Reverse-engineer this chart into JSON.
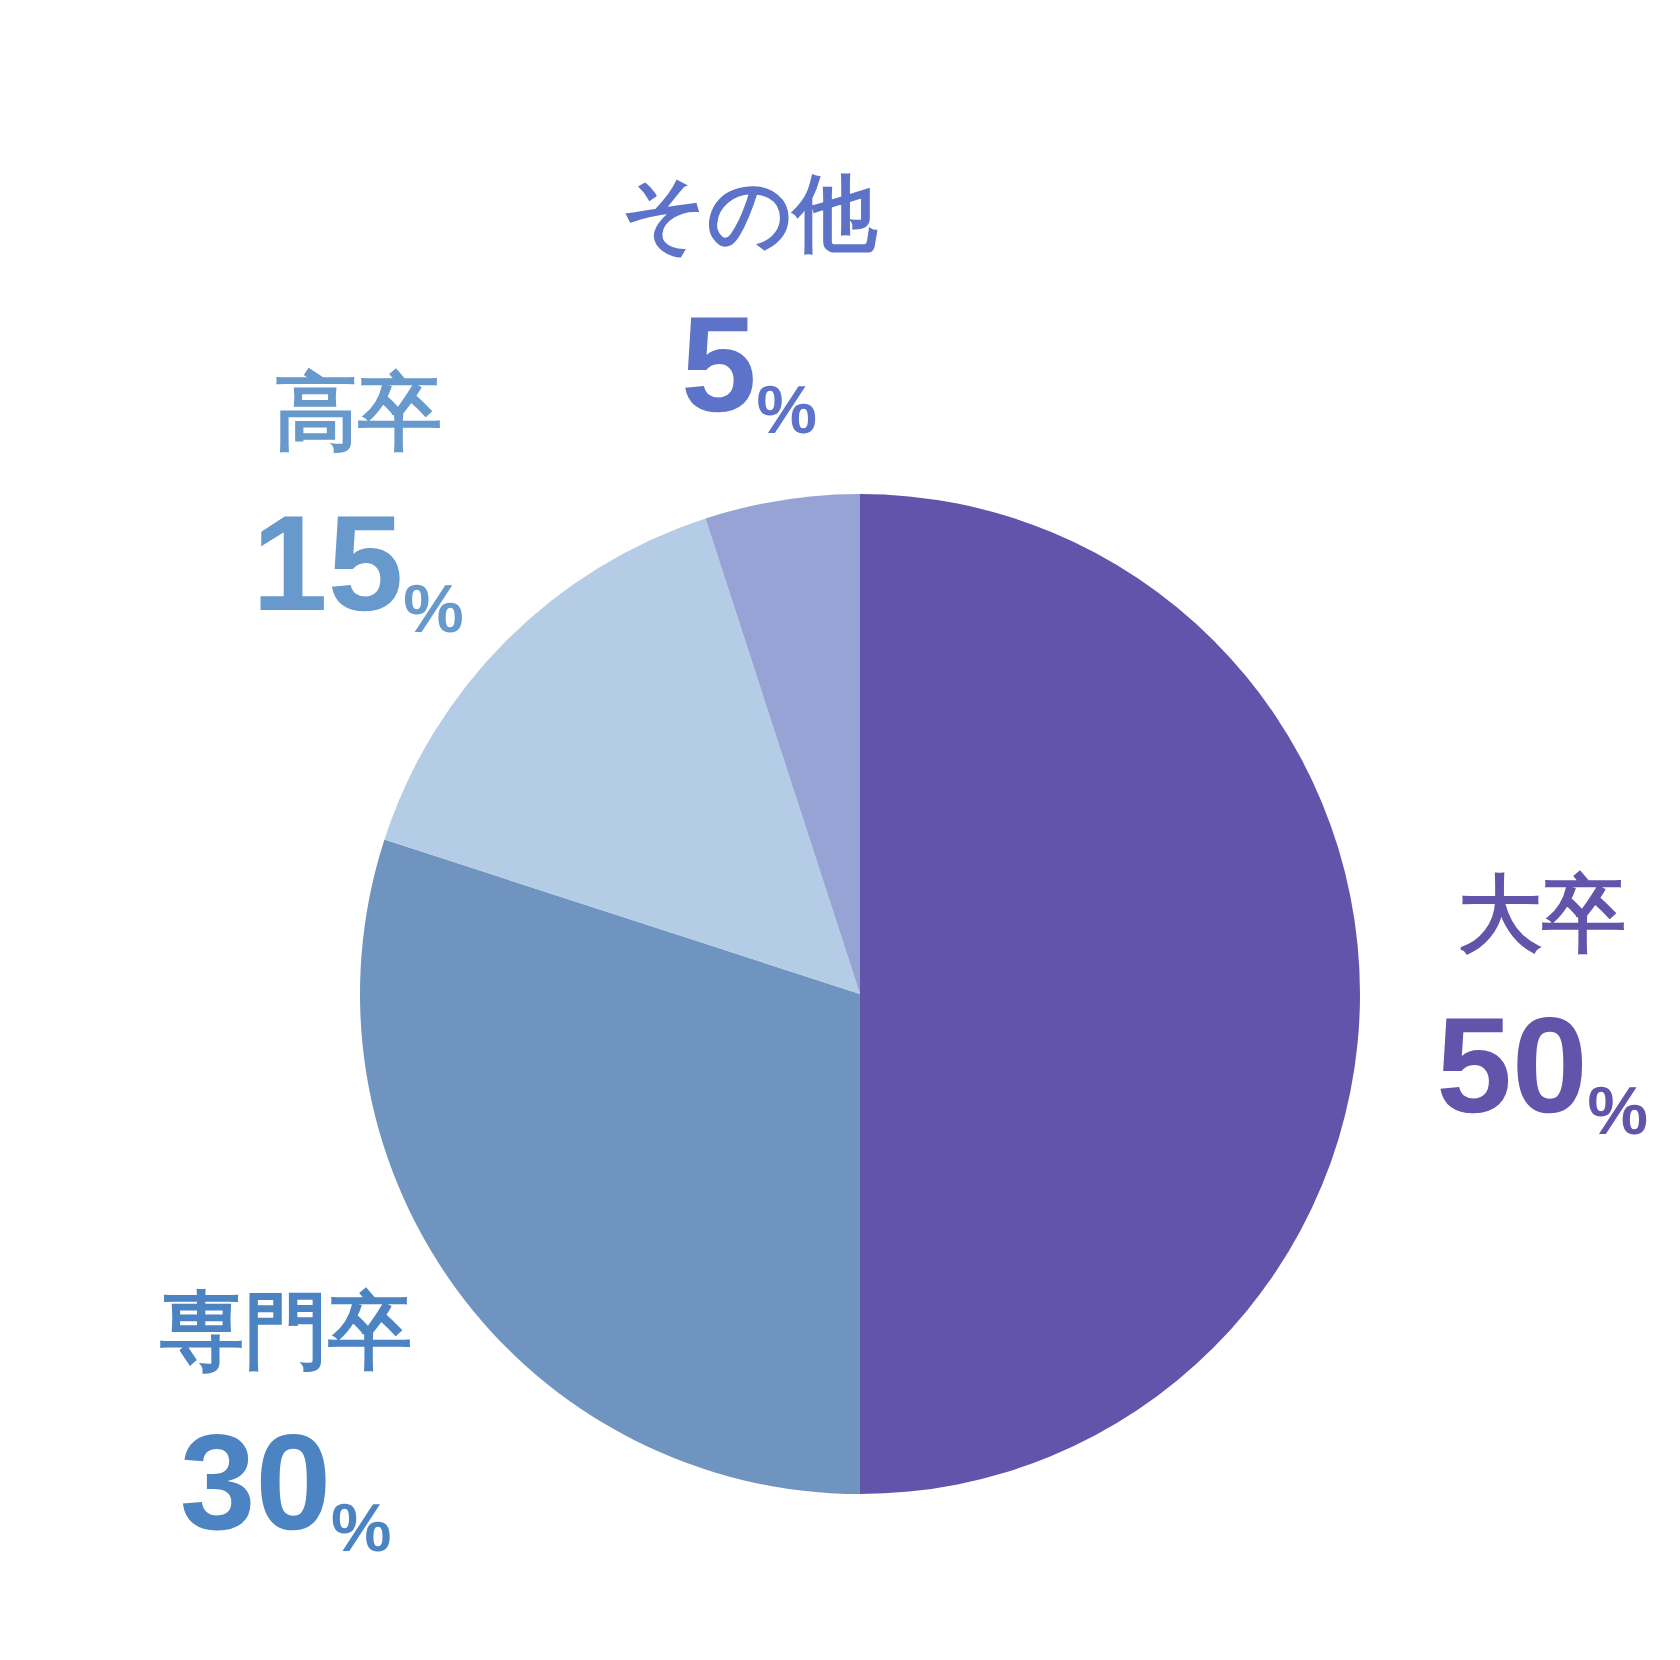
{
  "chart_data": {
    "type": "pie",
    "categories": [
      "大卒",
      "専門卒",
      "高卒",
      "その他"
    ],
    "values": [
      50,
      30,
      15,
      5
    ],
    "colors": [
      "#6354ab",
      "#6f94bf",
      "#b4cce5",
      "#96a3d4"
    ],
    "value_labels": [
      "50%",
      "30%",
      "15%",
      "5%"
    ],
    "legend": false
  }
}
